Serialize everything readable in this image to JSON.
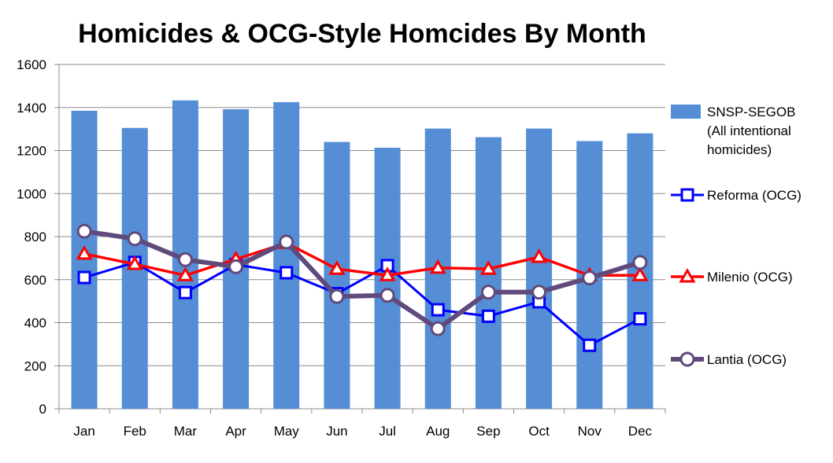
{
  "chart_data": {
    "type": "bar",
    "title": "Homicides & OCG-Style Homcides By Month",
    "categories": [
      "Jan",
      "Feb",
      "Mar",
      "Apr",
      "May",
      "Jun",
      "Jul",
      "Aug",
      "Sep",
      "Oct",
      "Nov",
      "Dec"
    ],
    "ylim": [
      0,
      1600
    ],
    "yticks": [
      "0",
      "200",
      "400",
      "600",
      "800",
      "1000",
      "1200",
      "1400",
      "1600"
    ],
    "grid": true,
    "legend_position": "right",
    "series": [
      {
        "name": "SNSP-SEGOB (All intentional homicides)",
        "legend_lines": [
          "SNSP-SEGOB",
          "(All intentional",
          "homicides)"
        ],
        "type": "bar",
        "color": "#558ED5",
        "marker": "none",
        "values": [
          1385,
          1305,
          1433,
          1392,
          1425,
          1240,
          1213,
          1302,
          1262,
          1302,
          1244,
          1280
        ]
      },
      {
        "name": "Reforma (OCG)",
        "legend_lines": [
          "Reforma (OCG)"
        ],
        "type": "line",
        "color": "#0000FF",
        "marker": "square",
        "values": [
          610,
          680,
          540,
          670,
          632,
          535,
          665,
          460,
          430,
          497,
          295,
          418
        ]
      },
      {
        "name": "Milenio (OCG)",
        "legend_lines": [
          "Milenio (OCG)"
        ],
        "type": "line",
        "color": "#FF0000",
        "marker": "triangle",
        "values": [
          720,
          672,
          620,
          695,
          770,
          650,
          620,
          655,
          650,
          705,
          620,
          620
        ]
      },
      {
        "name": "Lantia (OCG)",
        "legend_lines": [
          "Lantia (OCG)"
        ],
        "type": "line",
        "color": "#604A7B",
        "marker": "circle",
        "values": [
          825,
          790,
          693,
          660,
          775,
          522,
          527,
          372,
          542,
          542,
          608,
          680
        ]
      }
    ]
  }
}
